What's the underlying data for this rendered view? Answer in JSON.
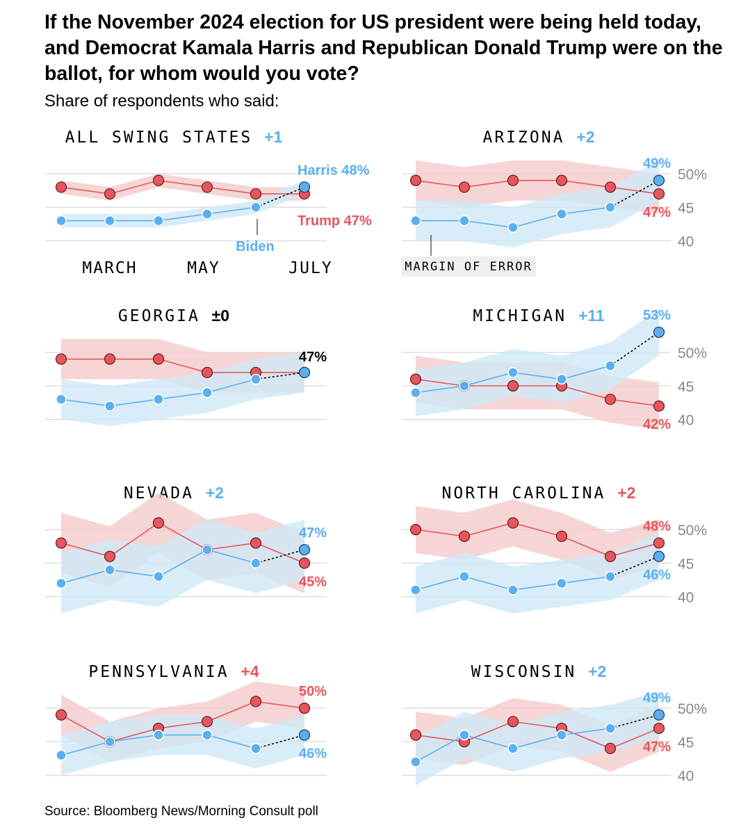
{
  "title": "If the November 2024 election for US president were being held today, and Democrat Kamala Harris and Republican Donald Trump were on the ballot, for whom would you vote?",
  "subtitle": "Share of respondents who said:",
  "source": "Source: Bloomberg News/Morning Consult poll",
  "colors": {
    "dem": "#5aaff0",
    "rep": "#e8555c",
    "dem_band": "#cfe8f8",
    "rep_band": "#f4caca",
    "grid": "#dddddd"
  },
  "chart_data": [
    {
      "type": "line",
      "title": "ALL SWING STATES",
      "lead": "+1",
      "lead_party": "dem",
      "moe": 1,
      "x": [
        "",
        "MARCH",
        "",
        "MAY",
        "",
        "JULY"
      ],
      "ylim": [
        40,
        50
      ],
      "series": [
        {
          "name": "Trump",
          "party": "rep",
          "values": [
            48,
            47,
            49,
            48,
            47,
            47
          ],
          "end_label": "Trump 47%"
        },
        {
          "name": "Harris",
          "party": "dem",
          "values": [
            43,
            43,
            43,
            44,
            45,
            48
          ],
          "end_label": "Harris 48%"
        }
      ]
    },
    {
      "type": "line",
      "title": "ARIZONA",
      "lead": "+2",
      "lead_party": "dem",
      "moe": 3,
      "ylim": [
        40,
        50
      ],
      "yticks": [
        "40",
        "45",
        "50%"
      ],
      "series": [
        {
          "party": "rep",
          "values": [
            49,
            48,
            49,
            49,
            48,
            47
          ],
          "end_label": "47%"
        },
        {
          "party": "dem",
          "values": [
            43,
            43,
            42,
            44,
            45,
            49
          ],
          "end_label": "49%"
        }
      ]
    },
    {
      "type": "line",
      "title": "GEORGIA",
      "lead": "±0",
      "lead_party": "tie",
      "moe": 3,
      "ylim": [
        40,
        50
      ],
      "tie_label": "47%",
      "series": [
        {
          "party": "rep",
          "values": [
            49,
            49,
            49,
            47,
            47,
            47
          ],
          "end_label": ""
        },
        {
          "party": "dem",
          "values": [
            43,
            42,
            43,
            44,
            46,
            47
          ],
          "end_label": ""
        }
      ]
    },
    {
      "type": "line",
      "title": "MICHIGAN",
      "lead": "+11",
      "lead_party": "dem",
      "moe": 3.5,
      "ylim": [
        40,
        50
      ],
      "yticks": [
        "40",
        "45",
        "50%"
      ],
      "series": [
        {
          "party": "rep",
          "values": [
            46,
            45,
            45,
            45,
            43,
            42
          ],
          "end_label": "42%"
        },
        {
          "party": "dem",
          "values": [
            44,
            45,
            47,
            46,
            48,
            53
          ],
          "end_label": "53%"
        }
      ]
    },
    {
      "type": "line",
      "title": "NEVADA",
      "lead": "+2",
      "lead_party": "dem",
      "moe": 4.5,
      "ylim": [
        40,
        50
      ],
      "series": [
        {
          "party": "rep",
          "values": [
            48,
            46,
            51,
            47,
            48,
            45
          ],
          "end_label": "45%"
        },
        {
          "party": "dem",
          "values": [
            42,
            44,
            43,
            47,
            45,
            47
          ],
          "end_label": "47%"
        }
      ]
    },
    {
      "type": "line",
      "title": "NORTH CAROLINA",
      "lead": "+2",
      "lead_party": "rep",
      "moe": 3.5,
      "ylim": [
        40,
        50
      ],
      "yticks": [
        "40",
        "45",
        "50%"
      ],
      "series": [
        {
          "party": "rep",
          "values": [
            50,
            49,
            51,
            49,
            46,
            48
          ],
          "end_label": "48%"
        },
        {
          "party": "dem",
          "values": [
            41,
            43,
            41,
            42,
            43,
            46
          ],
          "end_label": "46%"
        }
      ]
    },
    {
      "type": "line",
      "title": "PENNSYLVANIA",
      "lead": "+4",
      "lead_party": "rep",
      "moe": 3,
      "ylim": [
        40,
        50
      ],
      "series": [
        {
          "party": "rep",
          "values": [
            49,
            45,
            47,
            48,
            51,
            50
          ],
          "end_label": "50%"
        },
        {
          "party": "dem",
          "values": [
            43,
            45,
            46,
            46,
            44,
            46
          ],
          "end_label": "46%"
        }
      ]
    },
    {
      "type": "line",
      "title": "WISCONSIN",
      "lead": "+2",
      "lead_party": "dem",
      "moe": 3.5,
      "ylim": [
        40,
        50
      ],
      "yticks": [
        "40",
        "45",
        "50%"
      ],
      "series": [
        {
          "party": "rep",
          "values": [
            46,
            45,
            48,
            47,
            44,
            47
          ],
          "end_label": "47%"
        },
        {
          "party": "dem",
          "values": [
            42,
            46,
            44,
            46,
            47,
            49
          ],
          "end_label": "49%"
        }
      ]
    }
  ],
  "annotations": {
    "biden": "Biden",
    "margin_of_error": "MARGIN OF ERROR"
  }
}
